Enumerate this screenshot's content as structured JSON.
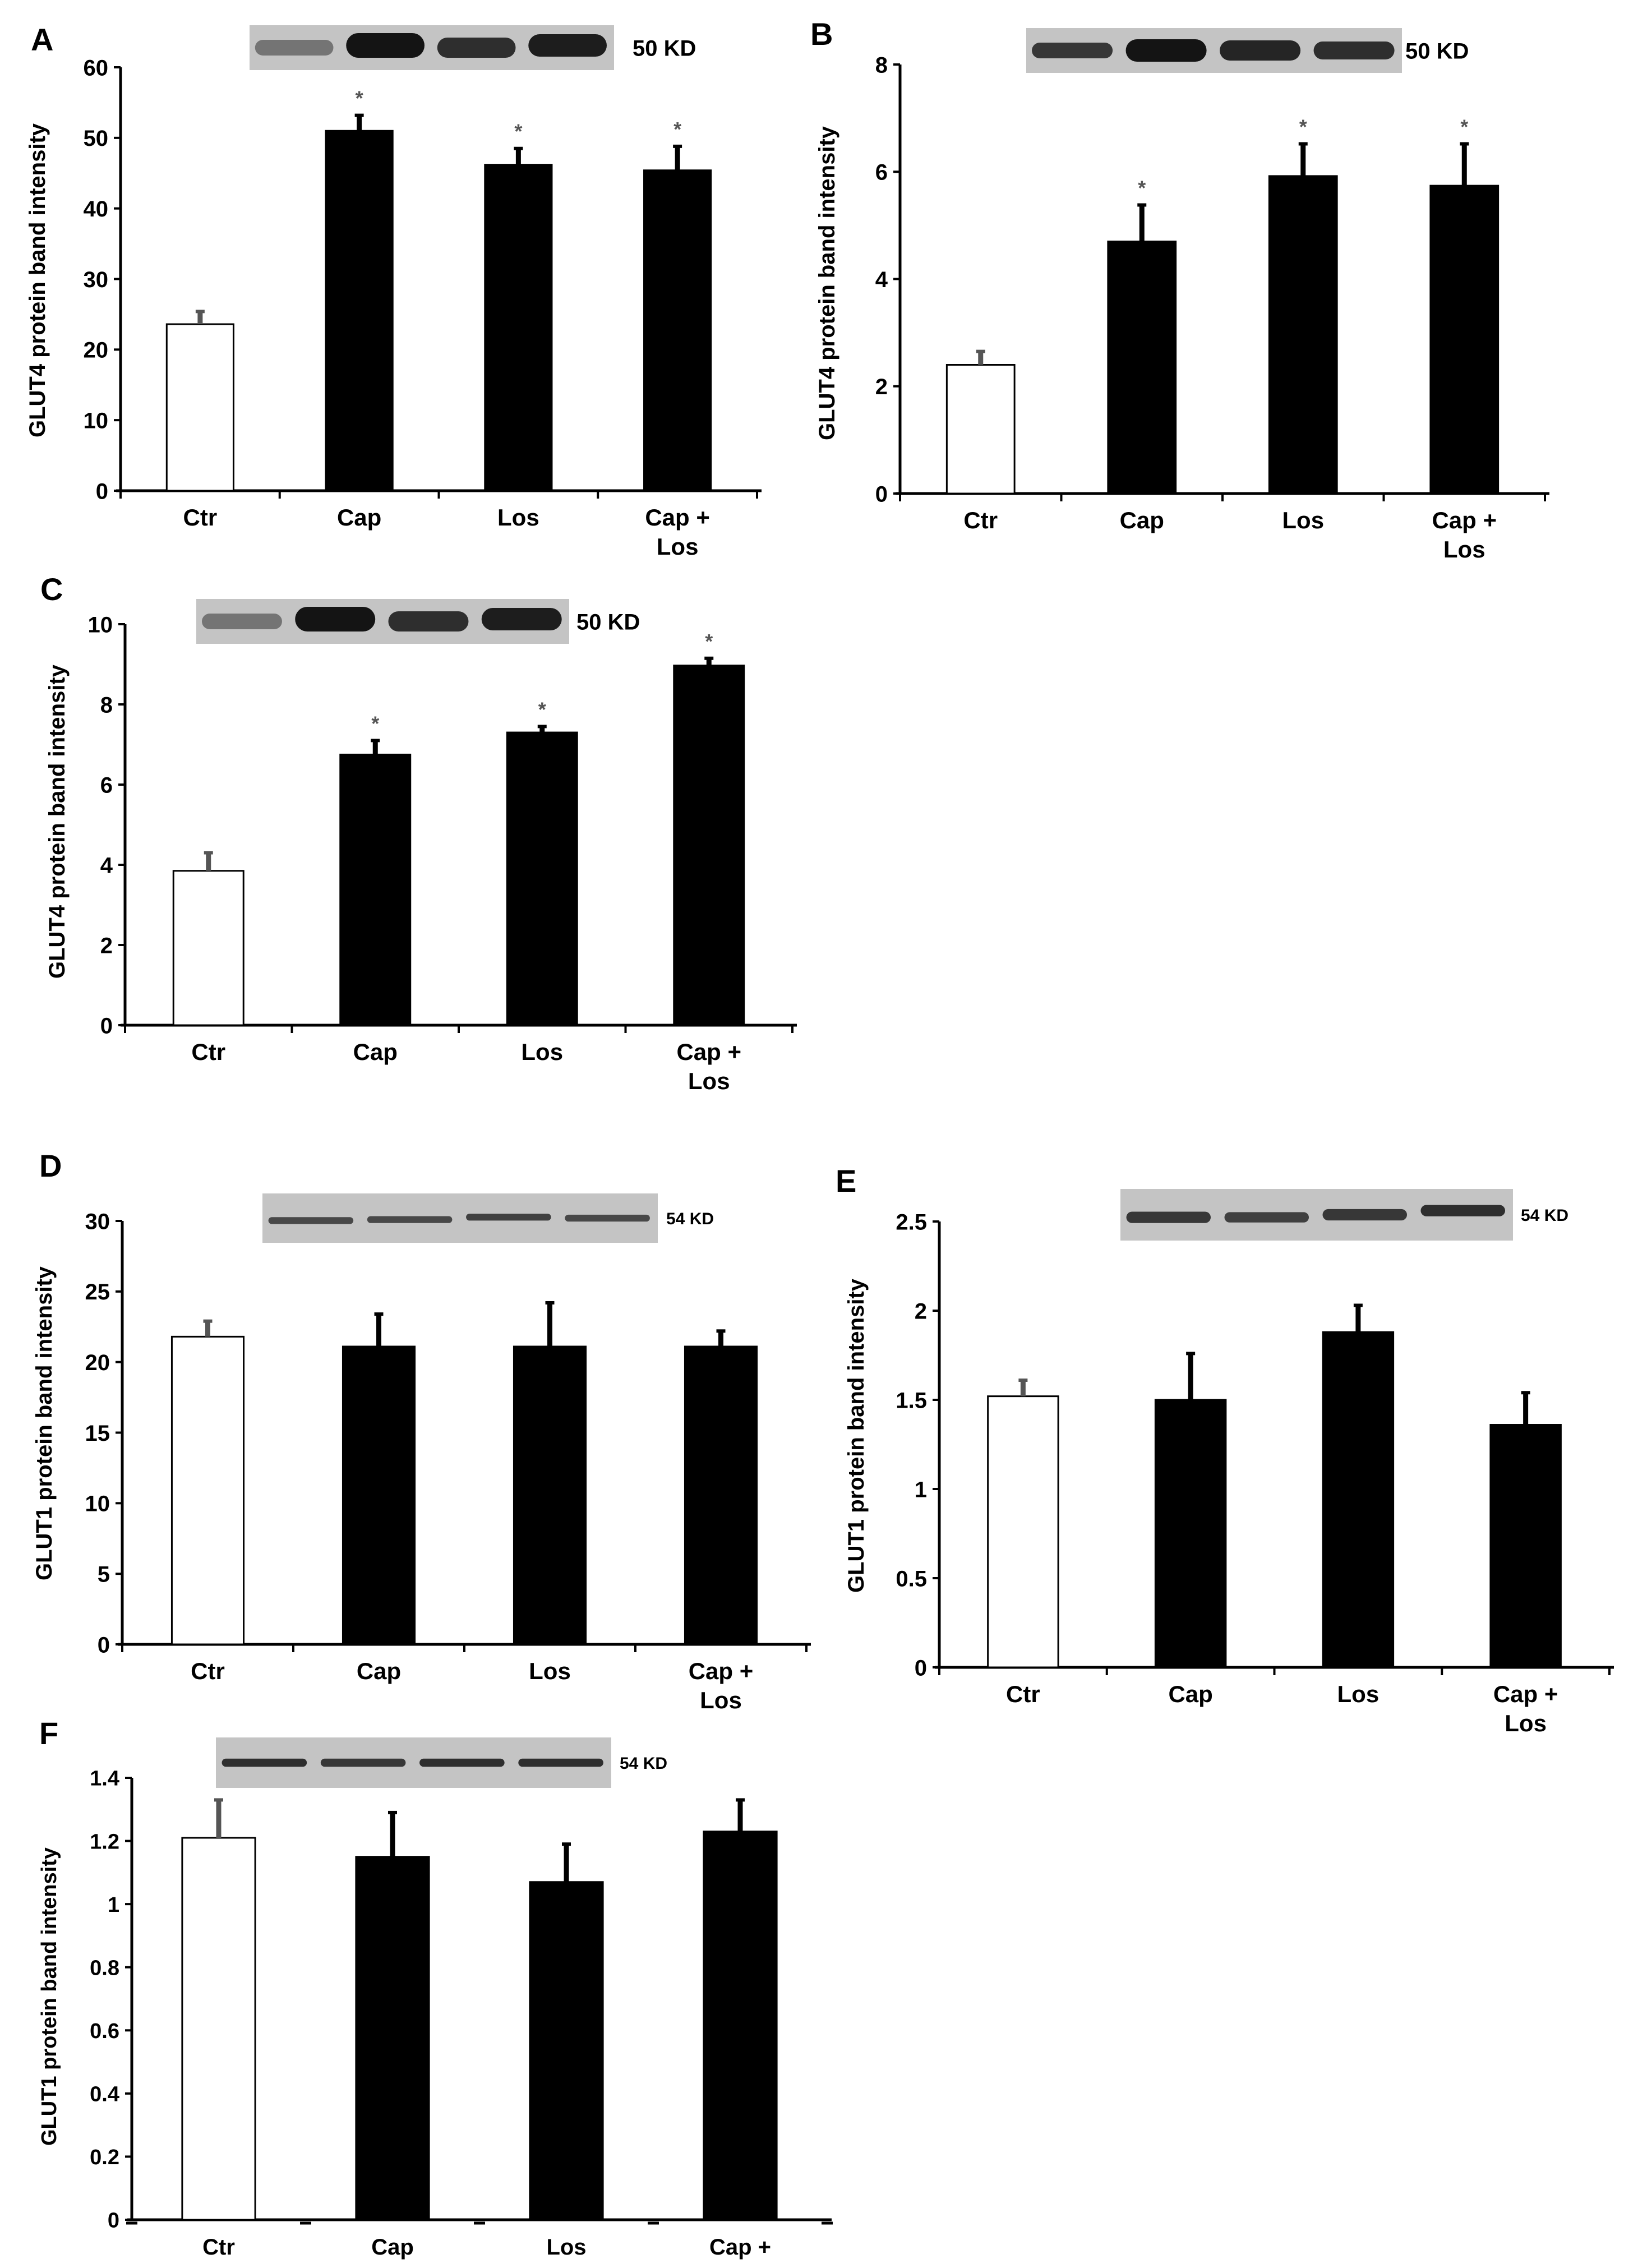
{
  "colors": {
    "axis": "#000000",
    "control_fill": "#ffffff",
    "treated_fill": "#000000",
    "text": "#000000",
    "blot_bg": "#c4c4c4",
    "blot_band": "#141414",
    "stat_mark": "#555555"
  },
  "category_labels": [
    [
      "Ctr"
    ],
    [
      "Cap"
    ],
    [
      "Los"
    ],
    [
      "Cap +",
      "Los"
    ]
  ],
  "chart_data": [
    {
      "panel": "A",
      "type": "bar",
      "ylabel": "GLUT4 protein band intensity",
      "categories": [
        "Ctr",
        "Cap",
        "Los",
        "Cap + Los"
      ],
      "values": [
        23.6,
        51,
        46.2,
        45.4
      ],
      "errors": [
        1.8,
        2.2,
        2.3,
        3.4
      ],
      "significance": [
        "",
        "*",
        "*",
        "*"
      ],
      "ylim": [
        0,
        60
      ],
      "yticks": [
        0,
        10,
        20,
        30,
        40,
        50,
        60
      ],
      "blot_label": "50 KD",
      "grid": false
    },
    {
      "panel": "B",
      "type": "bar",
      "ylabel": "GLUT4 protein band intensity",
      "categories": [
        "Ctr",
        "Cap",
        "Los",
        "Cap + Los"
      ],
      "values": [
        2.4,
        4.7,
        5.92,
        5.74
      ],
      "errors": [
        0.25,
        0.68,
        0.6,
        0.78
      ],
      "significance": [
        "",
        "*",
        "*",
        "*"
      ],
      "ylim": [
        0,
        8
      ],
      "yticks": [
        0,
        2,
        4,
        6,
        8
      ],
      "blot_label": "50 KD",
      "grid": false
    },
    {
      "panel": "C",
      "type": "bar",
      "ylabel": "GLUT4 protein band intensity",
      "categories": [
        "Ctr",
        "Cap",
        "Los",
        "Cap + Los"
      ],
      "values": [
        3.85,
        6.75,
        7.3,
        8.97
      ],
      "errors": [
        0.45,
        0.35,
        0.15,
        0.18
      ],
      "significance": [
        "",
        "*",
        "*",
        "*"
      ],
      "ylim": [
        0,
        10
      ],
      "yticks": [
        0,
        2,
        4,
        6,
        8,
        10
      ],
      "blot_label": "50 KD",
      "grid": false
    },
    {
      "panel": "D",
      "type": "bar",
      "ylabel": "GLUT1 protein band intensity",
      "categories": [
        "Ctr",
        "Cap",
        "Los",
        "Cap + Los"
      ],
      "values": [
        21.8,
        21.1,
        21.1,
        21.1
      ],
      "errors": [
        1.1,
        2.3,
        3.1,
        1.1
      ],
      "significance": [
        "",
        "",
        "",
        ""
      ],
      "ylim": [
        0,
        30
      ],
      "yticks": [
        0,
        5,
        10,
        15,
        20,
        25,
        30
      ],
      "blot_label": "54 KD",
      "grid": false
    },
    {
      "panel": "E",
      "type": "bar",
      "ylabel": "GLUT1 protein band intensity",
      "categories": [
        "Ctr",
        "Cap",
        "Los",
        "Cap + Los"
      ],
      "values": [
        1.52,
        1.5,
        1.88,
        1.36
      ],
      "errors": [
        0.09,
        0.26,
        0.15,
        0.18
      ],
      "significance": [
        "",
        "",
        "",
        ""
      ],
      "ylim": [
        0,
        2.5
      ],
      "yticks": [
        0,
        0.5,
        1,
        1.5,
        2,
        2.5
      ],
      "blot_label": "54 KD",
      "grid": false
    },
    {
      "panel": "F",
      "type": "bar",
      "ylabel": "GLUT1 protein band intensity",
      "categories": [
        "Ctr",
        "Cap",
        "Los",
        "Cap + Los"
      ],
      "values": [
        1.21,
        1.15,
        1.07,
        1.23
      ],
      "errors": [
        0.12,
        0.14,
        0.12,
        0.1
      ],
      "significance": [
        "",
        "",
        "",
        ""
      ],
      "ylim": [
        0,
        1.4
      ],
      "yticks": [
        0,
        0.2,
        0.4,
        0.6,
        0.8,
        1,
        1.2,
        1.4
      ],
      "blot_label": "54 KD",
      "grid": false
    }
  ]
}
